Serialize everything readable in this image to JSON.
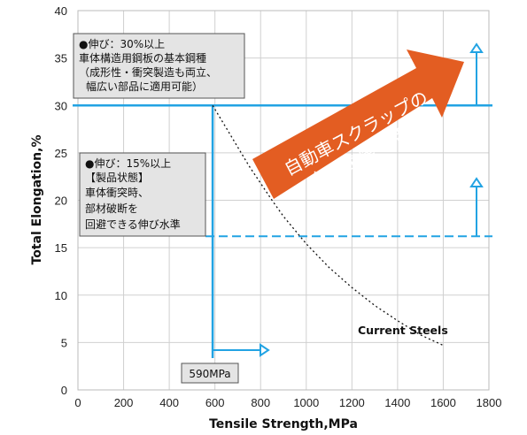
{
  "colors": {
    "guide": "#22a3e3",
    "arrow": "#e35d22",
    "box_fill": "#e4e4e4",
    "box_stroke": "#555555",
    "curve": "#111111",
    "grid": "#d0d0d0"
  },
  "chart_data": {
    "type": "line",
    "xlabel": "Tensile Strength,MPa",
    "ylabel": "Total Elongation,%",
    "xlim": [
      0,
      1800
    ],
    "ylim": [
      0,
      40
    ],
    "xticks": [
      0,
      200,
      400,
      600,
      800,
      1000,
      1200,
      1400,
      1600,
      1800
    ],
    "yticks": [
      0,
      5,
      10,
      15,
      20,
      25,
      30,
      35,
      40
    ],
    "grid": true,
    "series": [
      {
        "name": "Current Steels",
        "style": "dotted",
        "x": [
          590,
          650,
          700,
          750,
          800,
          850,
          900,
          1000,
          1100,
          1200,
          1300,
          1400,
          1500,
          1600
        ],
        "y": [
          30,
          27.6,
          25.6,
          23.6,
          21.8,
          20,
          18.3,
          15.4,
          12.9,
          10.8,
          8.9,
          7.3,
          5.8,
          4.7
        ]
      }
    ],
    "reference_lines": {
      "h30": 30,
      "h16": 16.2,
      "v590": 590
    },
    "annotations": {
      "box1_lines": [
        "●伸び：30%以上",
        "車体構造用鋼板の基本鋼種",
        "（成形性・衝突製造も両立、",
        "幅広い部品に適用可能）"
      ],
      "box2_lines": [
        "●伸び：15%以上",
        "【製品状態】",
        "車体衝突時、",
        "部材破断を",
        "回避できる伸び水準"
      ],
      "box3": "590MPa",
      "arrow_lines": [
        "自動車スクラップの",
        "有用金属の活用"
      ]
    }
  }
}
